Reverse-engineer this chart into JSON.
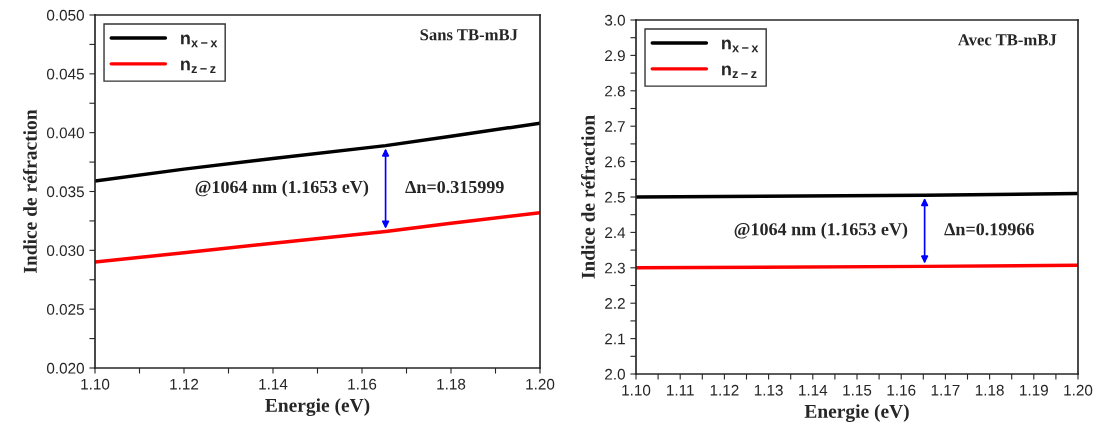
{
  "chart_data": [
    {
      "type": "line",
      "xlabel": "Energie (eV)",
      "ylabel": "Indice de réfraction",
      "legend": "top left",
      "grid": false,
      "x": [
        1.1,
        1.12,
        1.14,
        1.1653,
        1.18,
        1.2
      ],
      "series": [
        {
          "name": "n$_{x−x}$",
          "color": "#000000",
          "values": [
            0.0359,
            0.0369,
            0.0378,
            0.0389,
            0.0397,
            0.0408
          ]
        },
        {
          "name": "n$_{z−z}$",
          "color": "#ff0000",
          "values": [
            0.029,
            0.0298,
            0.0306,
            0.0316,
            0.0323,
            0.0332
          ]
        }
      ],
      "xlim": [
        1.1,
        1.2
      ],
      "ylim": [
        0.02,
        0.05
      ],
      "xticks": [
        {
          "value": 1.1,
          "label": "1.10"
        },
        {
          "value": 1.11,
          "label": null
        },
        1.12,
        {
          "value": 1.13,
          "label": null
        },
        1.14,
        {
          "value": 1.15,
          "label": null
        },
        1.16,
        {
          "value": 1.17,
          "label": null
        },
        1.18,
        {
          "value": 1.19,
          "label": null
        },
        {
          "value": 1.2,
          "label": "1.20"
        }
      ],
      "yticks": [
        {
          "value": 0.02,
          "label": "0.020"
        },
        {
          "value": 0.0225,
          "label": null
        },
        0.025,
        {
          "value": 0.0275,
          "label": null
        },
        {
          "value": 0.03,
          "label": "0.030"
        },
        {
          "value": 0.0325,
          "label": null
        },
        0.035,
        {
          "value": 0.0375,
          "label": null
        },
        {
          "value": 0.04,
          "label": "0.040"
        },
        {
          "value": 0.0425,
          "label": null
        },
        0.045,
        {
          "value": 0.0475,
          "label": null
        },
        {
          "value": 0.05,
          "label": "0.050"
        }
      ],
      "annotations": [
        "Sans TB-mBJ",
        {
          "text": "@1064 nm (1.1653 eV)",
          "x": 1.1653,
          "y": 0.0389
        },
        "Δn=0.315999"
      ]
    },
    {
      "type": "line",
      "xlabel": "Energie (eV)",
      "ylabel": "Indice de réfraction",
      "legend": "top left",
      "grid": false,
      "x": [
        1.1,
        1.1653,
        1.2
      ],
      "series": [
        {
          "name": "n$_{x−x}$",
          "color": "#000000",
          "values": [
            2.5,
            2.505,
            2.51
          ]
        },
        {
          "name": "n$_{z−z}$",
          "color": "#ff0000",
          "values": [
            2.3,
            2.304,
            2.307
          ]
        }
      ],
      "xlim": [
        1.1,
        1.2
      ],
      "ylim": [
        2.0,
        3.0
      ],
      "xticks": [
        {
          "value": 1.1,
          "label": "1.10"
        },
        {
          "value": 1.105,
          "label": null
        },
        1.11,
        {
          "value": 1.115,
          "label": null
        },
        1.12,
        {
          "value": 1.125,
          "label": null
        },
        1.13,
        {
          "value": 1.135,
          "label": null
        },
        1.14,
        {
          "value": 1.145,
          "label": null
        },
        1.15,
        {
          "value": 1.155,
          "label": null
        },
        1.16,
        {
          "value": 1.165,
          "label": null
        },
        1.17,
        {
          "value": 1.175,
          "label": null
        },
        1.18,
        {
          "value": 1.185,
          "label": null
        },
        1.19,
        {
          "value": 1.195,
          "label": null
        },
        {
          "value": 1.2,
          "label": "1.20"
        }
      ],
      "yticks": [
        {
          "value": 2.0,
          "label": "2.0"
        },
        {
          "value": 2.05,
          "label": null
        },
        2.1,
        {
          "value": 2.15,
          "label": null
        },
        2.2,
        {
          "value": 2.25,
          "label": null
        },
        2.3,
        {
          "value": 2.35,
          "label": null
        },
        2.4,
        {
          "value": 2.45,
          "label": null
        },
        2.5,
        {
          "value": 2.55,
          "label": null
        },
        2.6,
        {
          "value": 2.65,
          "label": null
        },
        2.7,
        {
          "value": 2.75,
          "label": null
        },
        2.8,
        {
          "value": 2.85,
          "label": null
        },
        2.9,
        {
          "value": 2.95,
          "label": null
        },
        {
          "value": 3.0,
          "label": "3.0"
        }
      ],
      "annotations": [
        "Avec TB-mBJ",
        {
          "text": "@1064 nm (1.1653 eV)",
          "x": 1.1653,
          "y": 2.505
        },
        "Δn=0.19966"
      ]
    }
  ]
}
